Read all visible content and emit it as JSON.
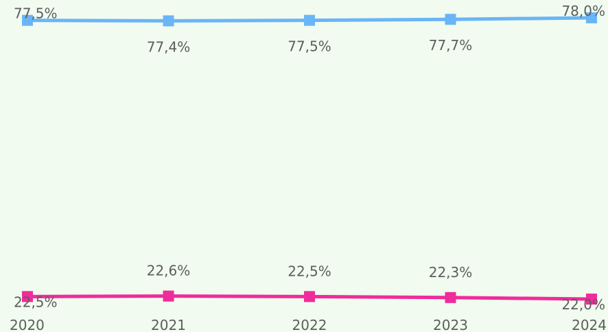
{
  "chart_data": {
    "type": "line",
    "categories": [
      "2020",
      "2021",
      "2022",
      "2023",
      "2024"
    ],
    "series": [
      {
        "values": [
          77.5,
          77.4,
          77.5,
          77.7,
          78.0
        ],
        "labels": [
          "77,5%",
          "77,4%",
          "77,5%",
          "77,7%",
          "78,0%"
        ],
        "color": "#6ab5f7",
        "label_position": [
          "left-above",
          "below",
          "below",
          "below",
          "right-above"
        ]
      },
      {
        "values": [
          22.5,
          22.6,
          22.5,
          22.3,
          22.0
        ],
        "labels": [
          "22,5%",
          "22,6%",
          "22,5%",
          "22,3%",
          "22,0%"
        ],
        "color": "#ef2c9c",
        "label_position": [
          "left-below",
          "above",
          "above",
          "above",
          "right-below"
        ]
      }
    ],
    "title": "",
    "xlabel": "",
    "ylabel": "",
    "ylim": [
      22.0,
      78.0
    ],
    "grid": false,
    "legend": "none"
  },
  "background_color": "#f1fbef"
}
